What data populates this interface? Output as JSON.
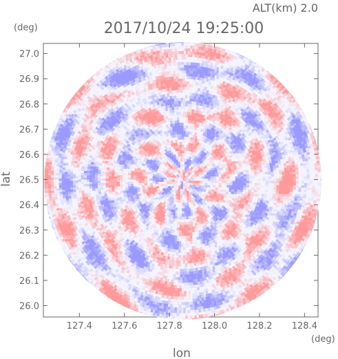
{
  "chart_data": {
    "type": "heatmap",
    "subtitle": "ALT(km) 2.0",
    "title": "2017/10/24 19:25:00",
    "xlabel": "lon",
    "ylabel": "lat",
    "x_unit": "(deg)",
    "y_unit": "(deg)",
    "xlim": [
      127.24,
      128.46
    ],
    "ylim": [
      25.955,
      27.04
    ],
    "x_ticks": [
      "127.4",
      "127.6",
      "127.8",
      "128.0",
      "128.2",
      "128.4"
    ],
    "y_ticks": [
      "26.0",
      "26.1",
      "26.2",
      "26.3",
      "26.4",
      "26.5",
      "26.6",
      "26.7",
      "26.8",
      "26.9",
      "27.0"
    ],
    "center": {
      "lon": 127.86,
      "lat": 26.495
    },
    "radius_deg_lat": 0.55,
    "grid": false,
    "colors": {
      "positive": "#ff9a9a",
      "negative": "#9a9aff",
      "neutral": "#f4f4ff",
      "axis": "#666666"
    }
  }
}
